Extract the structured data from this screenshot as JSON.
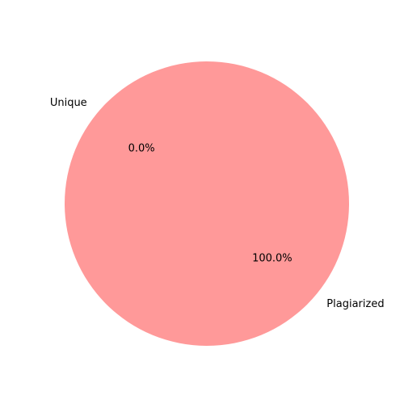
{
  "chart_data": {
    "type": "pie",
    "title": "",
    "slices": [
      {
        "label": "Unique",
        "value": 0.0,
        "percent_label": "0.0%",
        "color": "#66b3ff"
      },
      {
        "label": "Plagiarized",
        "value": 100.0,
        "percent_label": "100.0%",
        "color": "#ff9999"
      }
    ],
    "start_angle_deg": 140,
    "direction": "counterclockwise",
    "legend": "none"
  }
}
